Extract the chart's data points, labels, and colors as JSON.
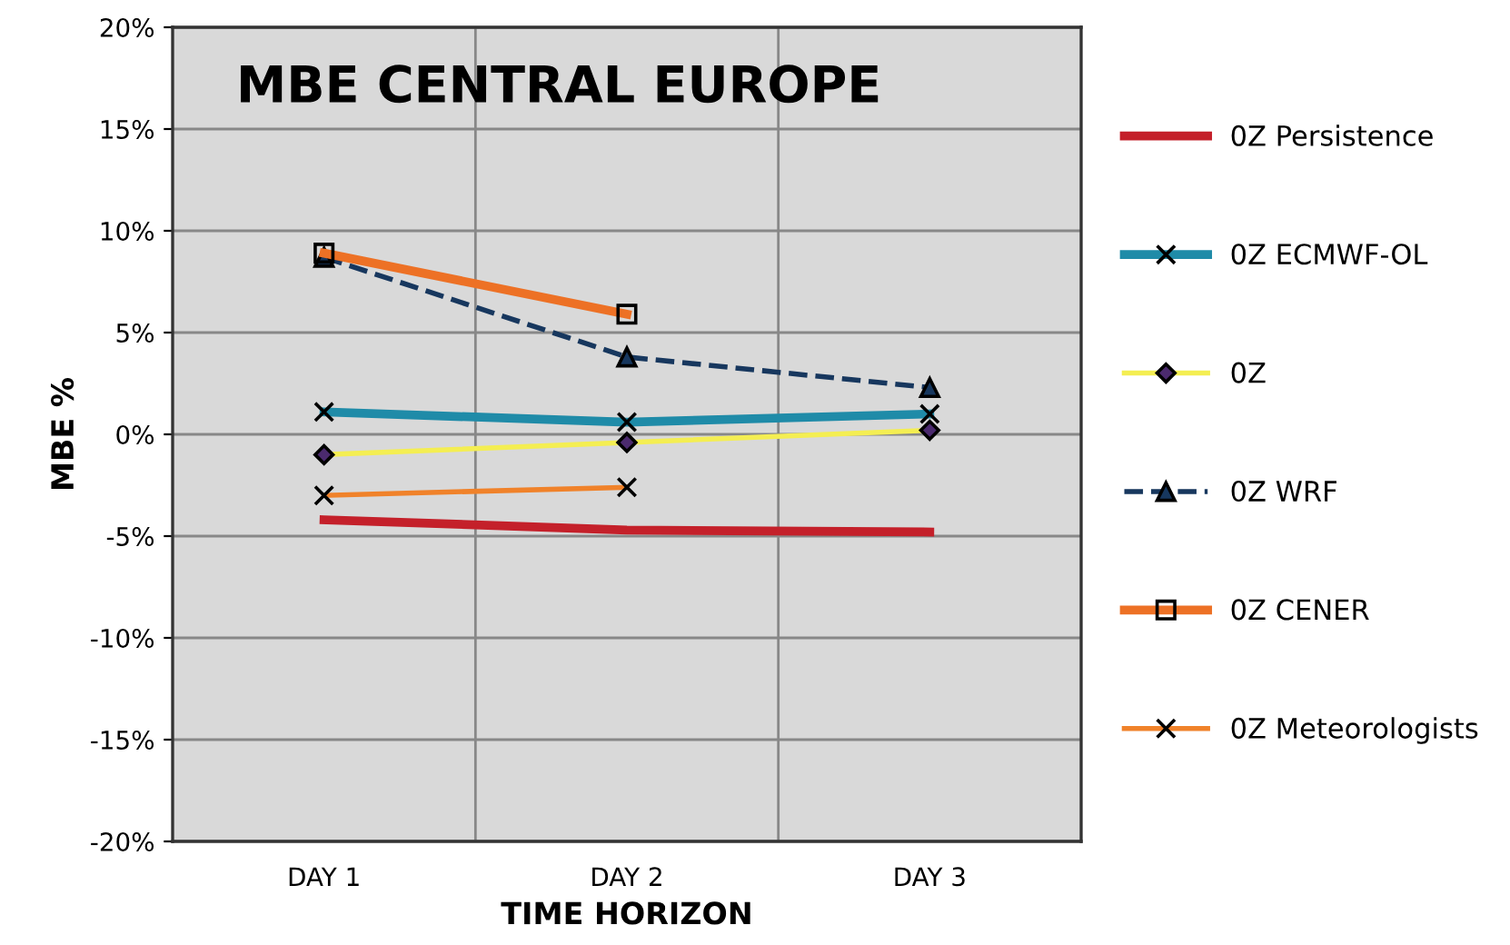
{
  "chart_data": {
    "type": "line",
    "title": "MBE CENTRAL EUROPE",
    "xlabel": "TIME HORIZON",
    "ylabel": "MBE %",
    "categories": [
      "DAY 1",
      "DAY 2",
      "DAY 3"
    ],
    "series": [
      {
        "name": "0Z Persistence",
        "color": "#c4202a",
        "values": [
          -4.2,
          -4.7,
          -4.8
        ],
        "marker": "none",
        "line_style": "solid"
      },
      {
        "name": "0Z ECMWF-OL",
        "color": "#1f8ba8",
        "values": [
          1.1,
          0.6,
          1.0
        ],
        "marker": "cross",
        "line_style": "solid"
      },
      {
        "name": "0Z",
        "color": "#f4ee52",
        "values": [
          -1.0,
          -0.4,
          0.2
        ],
        "marker": "diamond",
        "line_style": "solid"
      },
      {
        "name": "0Z WRF",
        "color": "#17375e",
        "values": [
          8.7,
          3.8,
          2.3
        ],
        "marker": "triangle",
        "line_style": "dashed"
      },
      {
        "name": "0Z CENER",
        "color": "#ed7125",
        "values": [
          8.9,
          5.9,
          null
        ],
        "marker": "square",
        "line_style": "solid"
      },
      {
        "name": "0Z Meteorologists",
        "color": "#f0822a",
        "values": [
          -3.0,
          -2.6,
          null
        ],
        "marker": "cross",
        "line_style": "solid"
      }
    ],
    "ylim": [
      -20,
      20
    ],
    "yticks": [
      {
        "value": -20,
        "label": "-20%"
      },
      {
        "value": -15,
        "label": "-15%"
      },
      {
        "value": -10,
        "label": "-10%"
      },
      {
        "value": -5,
        "label": "-5%"
      },
      {
        "value": 0,
        "label": "0%"
      },
      {
        "value": 5,
        "label": "5%"
      },
      {
        "value": 10,
        "label": "10%"
      },
      {
        "value": 15,
        "label": "15%"
      },
      {
        "value": 20,
        "label": "20%"
      }
    ],
    "grid": true,
    "legend": "right"
  }
}
